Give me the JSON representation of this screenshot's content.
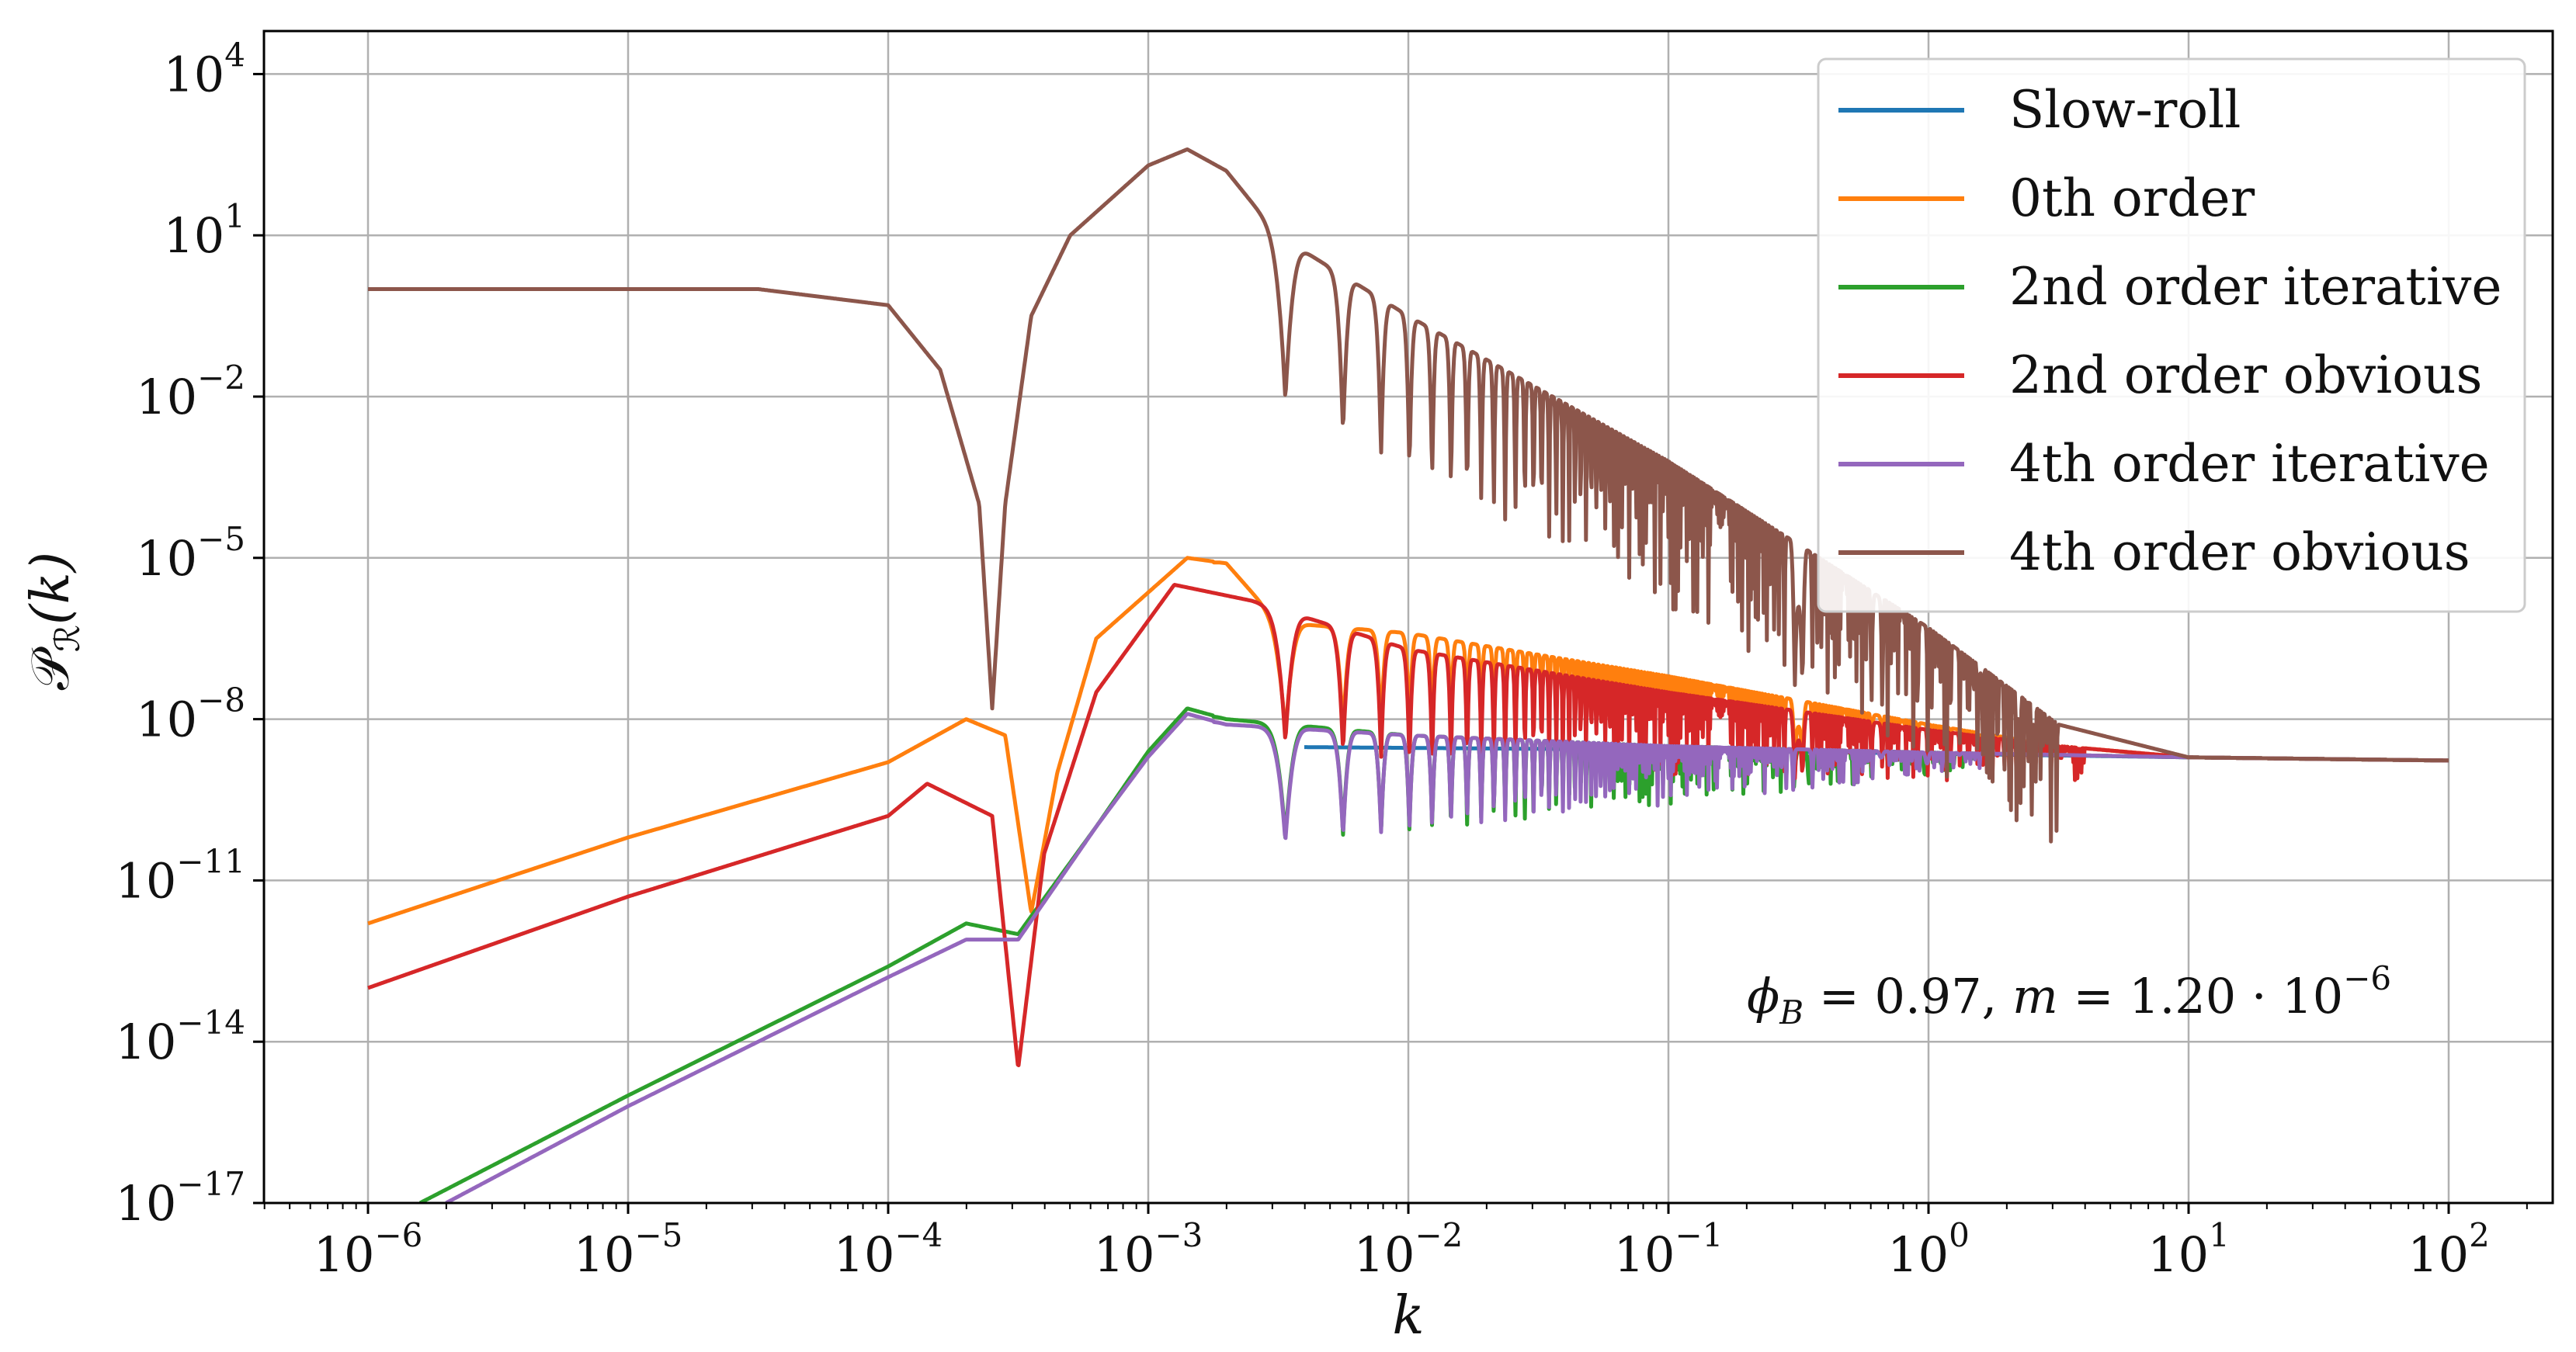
{
  "chart_data": {
    "type": "line",
    "xscale": "log",
    "yscale": "log",
    "xlabel": "k",
    "ylabel": "P_R(k)",
    "ylabel_parts": {
      "main": "𝒫",
      "sub": "ℛ",
      "arg": "(k)"
    },
    "xlim_log10": [
      -6.4,
      2.4
    ],
    "ylim_log10": [
      -17,
      4.8
    ],
    "xticks": [
      {
        "base": "10",
        "exp": "−6",
        "log10": -6
      },
      {
        "base": "10",
        "exp": "−5",
        "log10": -5
      },
      {
        "base": "10",
        "exp": "−4",
        "log10": -4
      },
      {
        "base": "10",
        "exp": "−3",
        "log10": -3
      },
      {
        "base": "10",
        "exp": "−2",
        "log10": -2
      },
      {
        "base": "10",
        "exp": "−1",
        "log10": -1
      },
      {
        "base": "10",
        "exp": "0",
        "log10": 0
      },
      {
        "base": "10",
        "exp": "1",
        "log10": 1
      },
      {
        "base": "10",
        "exp": "2",
        "log10": 2
      }
    ],
    "yticks": [
      {
        "base": "10",
        "exp": "4",
        "log10": 4
      },
      {
        "base": "10",
        "exp": "1",
        "log10": 1
      },
      {
        "base": "10",
        "exp": "−2",
        "log10": -2
      },
      {
        "base": "10",
        "exp": "−5",
        "log10": -5
      },
      {
        "base": "10",
        "exp": "−8",
        "log10": -8
      },
      {
        "base": "10",
        "exp": "−11",
        "log10": -11
      },
      {
        "base": "10",
        "exp": "−14",
        "log10": -14
      },
      {
        "base": "10",
        "exp": "−17",
        "log10": -17
      }
    ],
    "grid": true,
    "legend_position": "top-right",
    "annotation": {
      "phi": "ϕ",
      "phi_sub": "B",
      "phi_value": " = 0.97, ",
      "m": "m",
      "m_value": " = 1.20 · 10",
      "m_exp": "−6"
    },
    "series": [
      {
        "name": "Slow-roll",
        "color": "#1f77b4",
        "points_log10": [
          [
            -2.4,
            -8.52
          ],
          [
            -1.0,
            -8.57
          ],
          [
            0.0,
            -8.64
          ],
          [
            1.0,
            -8.71
          ],
          [
            2.0,
            -8.77
          ]
        ]
      },
      {
        "name": "0th order",
        "color": "#ff7f0e",
        "points_log10": [
          [
            -6.0,
            -11.8
          ],
          [
            -5.0,
            -10.2
          ],
          [
            -4.0,
            -8.8
          ],
          [
            -3.7,
            -8.0
          ],
          [
            -3.55,
            -8.3
          ],
          [
            -3.45,
            -11.6
          ],
          [
            -3.35,
            -9.0
          ],
          [
            -3.2,
            -6.5
          ],
          [
            -2.85,
            -5.0
          ],
          [
            -2.7,
            -5.1
          ],
          [
            -2.5,
            -6.2
          ],
          [
            -2.0,
            -6.4
          ],
          [
            -1.0,
            -7.2
          ],
          [
            0.0,
            -8.1
          ],
          [
            0.5,
            -8.5
          ],
          [
            1.0,
            -8.71
          ],
          [
            2.0,
            -8.77
          ]
        ],
        "osc": {
          "start": -2.75,
          "end": 0.6,
          "depth": [
            2.2,
            0.6
          ]
        }
      },
      {
        "name": "2nd order iterative",
        "color": "#2ca02c",
        "points_log10": [
          [
            -5.8,
            -17.0
          ],
          [
            -5.0,
            -15.0
          ],
          [
            -4.0,
            -12.6
          ],
          [
            -3.7,
            -11.8
          ],
          [
            -3.5,
            -12.0
          ],
          [
            -3.2,
            -10.0
          ],
          [
            -3.0,
            -8.6
          ],
          [
            -2.85,
            -7.8
          ],
          [
            -2.7,
            -8.0
          ],
          [
            -2.0,
            -8.3
          ],
          [
            -1.0,
            -8.5
          ],
          [
            0.0,
            -8.62
          ],
          [
            1.0,
            -8.71
          ],
          [
            2.0,
            -8.77
          ]
        ],
        "osc": {
          "start": -2.75,
          "end": 0.2,
          "depth": [
            2.3,
            0.3
          ]
        }
      },
      {
        "name": "2nd order obvious",
        "color": "#d62728",
        "points_log10": [
          [
            -6.0,
            -13.0
          ],
          [
            -5.0,
            -11.3
          ],
          [
            -4.0,
            -9.8
          ],
          [
            -3.85,
            -9.2
          ],
          [
            -3.6,
            -9.8
          ],
          [
            -3.5,
            -14.5
          ],
          [
            -3.4,
            -10.5
          ],
          [
            -3.2,
            -7.5
          ],
          [
            -2.9,
            -5.5
          ],
          [
            -2.6,
            -5.8
          ],
          [
            -2.0,
            -6.7
          ],
          [
            -1.0,
            -7.5
          ],
          [
            0.0,
            -8.2
          ],
          [
            0.5,
            -8.5
          ],
          [
            1.0,
            -8.71
          ],
          [
            2.0,
            -8.77
          ]
        ],
        "osc": {
          "start": -2.6,
          "end": 0.6,
          "depth": [
            2.5,
            0.6
          ]
        }
      },
      {
        "name": "4th order iterative",
        "color": "#9467bd",
        "points_log10": [
          [
            -5.7,
            -17.0
          ],
          [
            -5.0,
            -15.2
          ],
          [
            -4.0,
            -12.8
          ],
          [
            -3.7,
            -12.1
          ],
          [
            -3.5,
            -12.1
          ],
          [
            -3.2,
            -10.0
          ],
          [
            -3.0,
            -8.7
          ],
          [
            -2.85,
            -7.9
          ],
          [
            -2.7,
            -8.1
          ],
          [
            -2.0,
            -8.3
          ],
          [
            -1.0,
            -8.5
          ],
          [
            0.0,
            -8.62
          ],
          [
            1.0,
            -8.71
          ],
          [
            2.0,
            -8.77
          ]
        ],
        "osc": {
          "start": -2.75,
          "end": 0.2,
          "depth": [
            2.3,
            0.3
          ]
        }
      },
      {
        "name": "4th order obvious",
        "color": "#8c564b",
        "points_log10": [
          [
            -6.0,
            0.0
          ],
          [
            -4.5,
            0.0
          ],
          [
            -4.0,
            -0.3
          ],
          [
            -3.8,
            -1.5
          ],
          [
            -3.65,
            -4.0
          ],
          [
            -3.6,
            -7.8
          ],
          [
            -3.55,
            -4.0
          ],
          [
            -3.45,
            -0.5
          ],
          [
            -3.3,
            1.0
          ],
          [
            -3.0,
            2.3
          ],
          [
            -2.85,
            2.6
          ],
          [
            -2.7,
            2.2
          ],
          [
            -2.5,
            1.0
          ],
          [
            -2.0,
            -0.5
          ],
          [
            -1.0,
            -3.2
          ],
          [
            0.0,
            -6.3
          ],
          [
            0.5,
            -8.1
          ],
          [
            1.0,
            -8.71
          ],
          [
            2.0,
            -8.77
          ]
        ],
        "osc": {
          "start": -2.6,
          "end": 0.5,
          "depth": [
            3.0,
            2.5
          ]
        }
      }
    ]
  }
}
